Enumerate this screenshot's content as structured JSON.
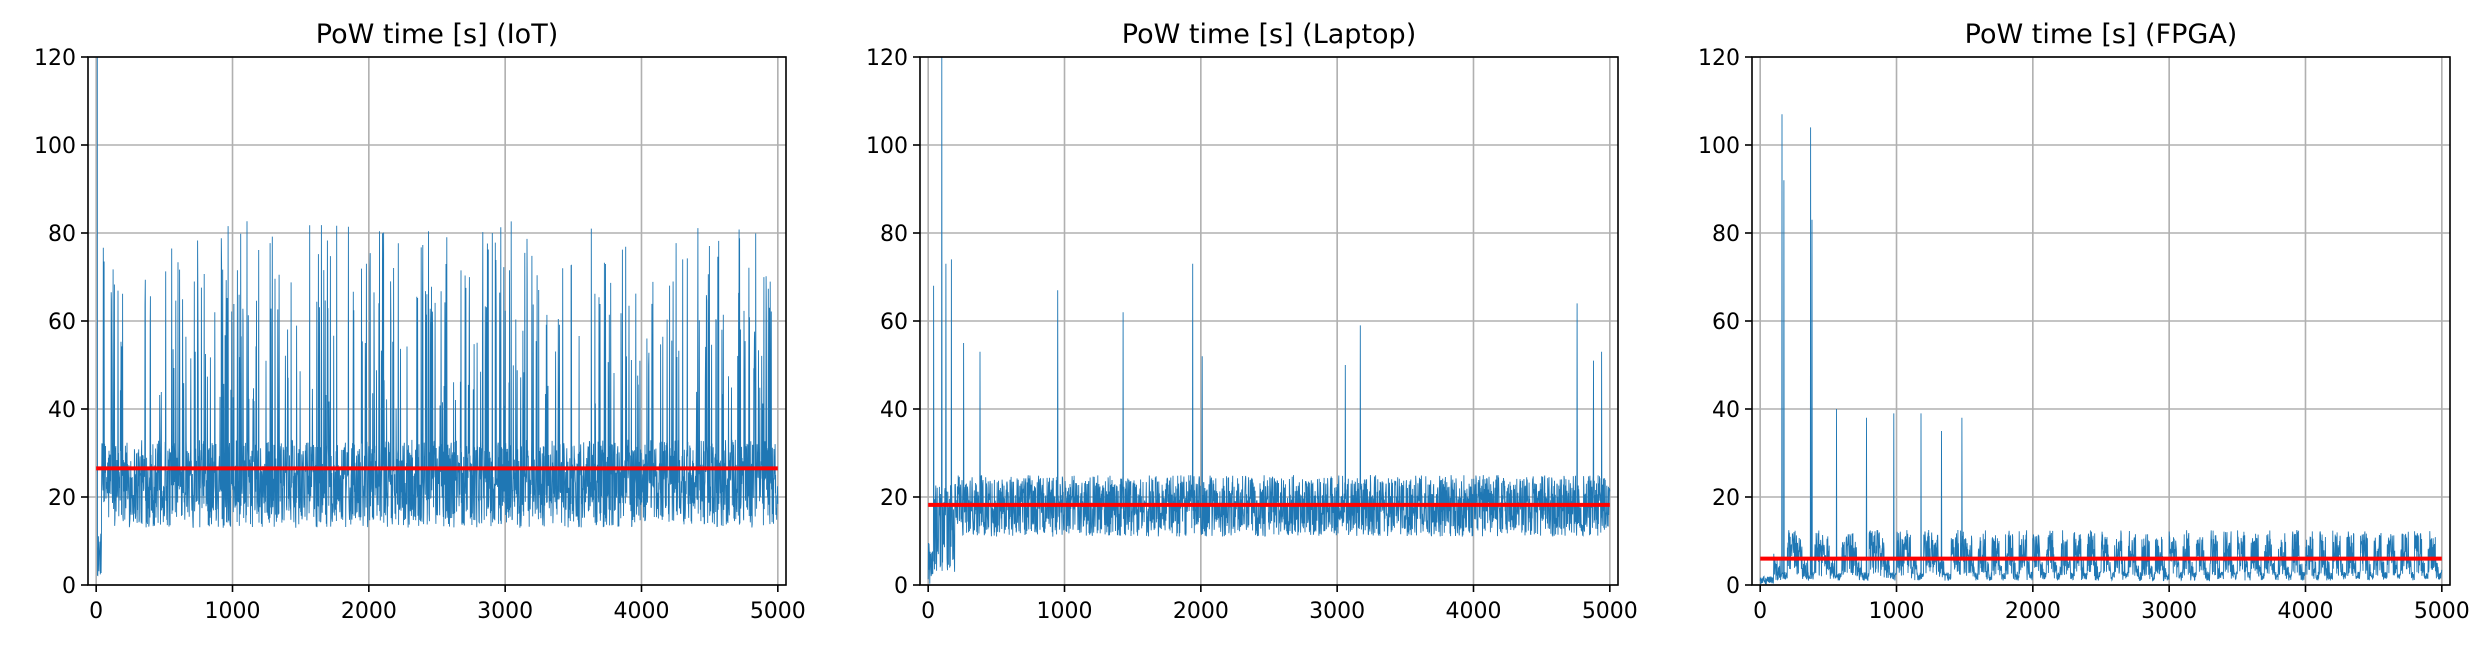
{
  "figure": {
    "colors": {
      "series": "#1f77b4",
      "mean": "#ff0000",
      "grid": "#b0b0b0",
      "axes": "#000000"
    }
  },
  "chart_data": [
    {
      "type": "line",
      "title": "PoW time [s] (IoT)",
      "xlabel": "",
      "ylabel": "",
      "xlim": [
        -60,
        5060
      ],
      "ylim": [
        0,
        120
      ],
      "xticks": [
        0,
        1000,
        2000,
        3000,
        4000,
        5000
      ],
      "yticks": [
        0,
        20,
        40,
        60,
        80,
        100,
        120
      ],
      "grid": true,
      "series": [
        {
          "kind": "raw",
          "x_range": [
            0,
            5000
          ],
          "values_summary": {
            "baseline_low": 13,
            "baseline_high": 33,
            "spike_max": 83,
            "initial_peak": 120,
            "initial_low": 2
          }
        },
        {
          "kind": "mean",
          "x": [
            0,
            5000
          ],
          "values": [
            26.5,
            26.5
          ]
        }
      ]
    },
    {
      "type": "line",
      "title": "PoW time [s] (Laptop)",
      "xlabel": "",
      "ylabel": "",
      "xlim": [
        -60,
        5060
      ],
      "ylim": [
        0,
        120
      ],
      "xticks": [
        0,
        1000,
        2000,
        3000,
        4000,
        5000
      ],
      "yticks": [
        0,
        20,
        40,
        60,
        80,
        100,
        120
      ],
      "grid": true,
      "series": [
        {
          "kind": "raw",
          "x_range": [
            0,
            5000
          ],
          "values_summary": {
            "baseline_low": 11,
            "baseline_high": 25,
            "initial_peak": 120,
            "initial_low": 0
          },
          "spikes": [
            {
              "x": 40,
              "y": 68
            },
            {
              "x": 100,
              "y": 120
            },
            {
              "x": 130,
              "y": 73
            },
            {
              "x": 170,
              "y": 74
            },
            {
              "x": 260,
              "y": 55
            },
            {
              "x": 380,
              "y": 53
            },
            {
              "x": 950,
              "y": 67
            },
            {
              "x": 1430,
              "y": 62
            },
            {
              "x": 1940,
              "y": 73
            },
            {
              "x": 2010,
              "y": 52
            },
            {
              "x": 3060,
              "y": 50
            },
            {
              "x": 3170,
              "y": 59
            },
            {
              "x": 4760,
              "y": 64
            },
            {
              "x": 4880,
              "y": 51
            },
            {
              "x": 4940,
              "y": 53
            }
          ]
        },
        {
          "kind": "mean",
          "x": [
            0,
            5000
          ],
          "values": [
            18.2,
            18.2
          ]
        }
      ]
    },
    {
      "type": "line",
      "title": "PoW time [s] (FPGA)",
      "xlabel": "",
      "ylabel": "",
      "xlim": [
        -60,
        5060
      ],
      "ylim": [
        0,
        120
      ],
      "xticks": [
        0,
        1000,
        2000,
        3000,
        4000,
        5000
      ],
      "yticks": [
        0,
        20,
        40,
        60,
        80,
        100,
        120
      ],
      "grid": true,
      "series": [
        {
          "kind": "raw",
          "x_range": [
            0,
            5000
          ],
          "values_summary": {
            "cycle_low": 1,
            "cycle_high": 13,
            "steady_from": 1500
          },
          "spikes": [
            {
              "x": 160,
              "y": 107
            },
            {
              "x": 175,
              "y": 92
            },
            {
              "x": 370,
              "y": 104
            },
            {
              "x": 380,
              "y": 83
            },
            {
              "x": 560,
              "y": 40
            },
            {
              "x": 780,
              "y": 38
            },
            {
              "x": 980,
              "y": 39
            },
            {
              "x": 1180,
              "y": 39
            },
            {
              "x": 1330,
              "y": 35
            },
            {
              "x": 1480,
              "y": 38
            }
          ]
        },
        {
          "kind": "mean",
          "x": [
            0,
            5000
          ],
          "values": [
            6.0,
            6.0
          ]
        }
      ]
    }
  ]
}
